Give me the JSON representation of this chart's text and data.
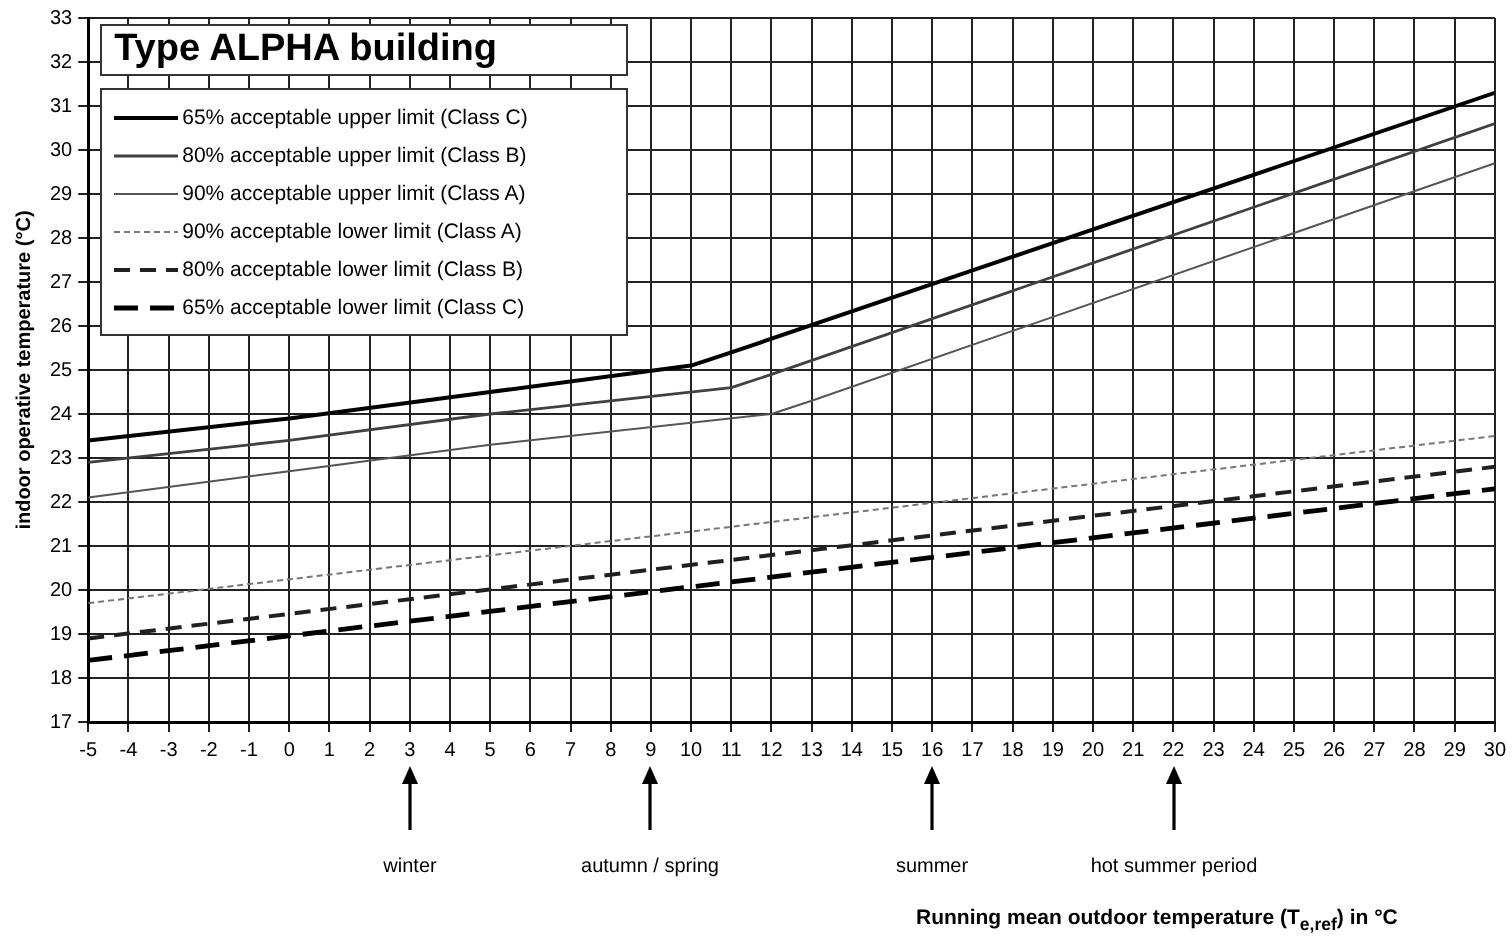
{
  "chart_data": {
    "type": "line",
    "title": "Type ALPHA building",
    "ylabel": "indoor operative temperature (°C)",
    "xlim": [
      -5,
      30
    ],
    "xticks": [
      -5,
      -4,
      -3,
      -2,
      -1,
      0,
      1,
      2,
      3,
      4,
      5,
      6,
      7,
      8,
      9,
      10,
      11,
      12,
      13,
      14,
      15,
      16,
      17,
      18,
      19,
      20,
      21,
      22,
      23,
      24,
      25,
      26,
      27,
      28,
      29,
      30
    ],
    "ylim": [
      17,
      33
    ],
    "yticks": [
      17,
      18,
      19,
      20,
      21,
      22,
      23,
      24,
      25,
      26,
      27,
      28,
      29,
      30,
      31,
      32,
      33
    ],
    "grid": true,
    "legend": "top left",
    "marker": "none",
    "series": [
      {
        "name": "65% acceptable upper limit (Class C)",
        "color": "#000000",
        "line_style": "solid",
        "x": [
          -5,
          0,
          5,
          10,
          11,
          30
        ],
        "values": [
          23.4,
          23.9,
          24.5,
          25.1,
          25.4,
          31.3
        ]
      },
      {
        "name": "80% acceptable upper limit (Class B)",
        "color": "#404040",
        "line_style": "solid",
        "x": [
          -5,
          0,
          5,
          11,
          12,
          30
        ],
        "values": [
          22.9,
          23.4,
          24.0,
          24.6,
          24.9,
          30.6
        ]
      },
      {
        "name": "90% acceptable upper limit (Class A)",
        "color": "#555555",
        "line_style": "solid",
        "x": [
          -5,
          0,
          5,
          12,
          13,
          30
        ],
        "values": [
          22.1,
          22.7,
          23.3,
          24.0,
          24.3,
          29.7
        ]
      },
      {
        "name": "90% acceptable lower limit (Class A)",
        "color": "#777777",
        "line_style": "dotted",
        "x": [
          -5,
          30
        ],
        "values": [
          19.7,
          23.5
        ]
      },
      {
        "name": "80% acceptable lower limit (Class B)",
        "color": "#202020",
        "line_style": "dashed",
        "x": [
          -5,
          30
        ],
        "values": [
          18.9,
          22.8
        ]
      },
      {
        "name": "65% acceptable lower limit (Class C)",
        "color": "#000000",
        "line_style": "dashed",
        "x": [
          -5,
          30
        ],
        "values": [
          18.4,
          22.3
        ]
      }
    ],
    "annotations": [
      "winter",
      "autumn / spring",
      "summer",
      "hot summer period",
      "Running mean outdoor temperature (T$_{e,ref}$) in °C"
    ]
  }
}
